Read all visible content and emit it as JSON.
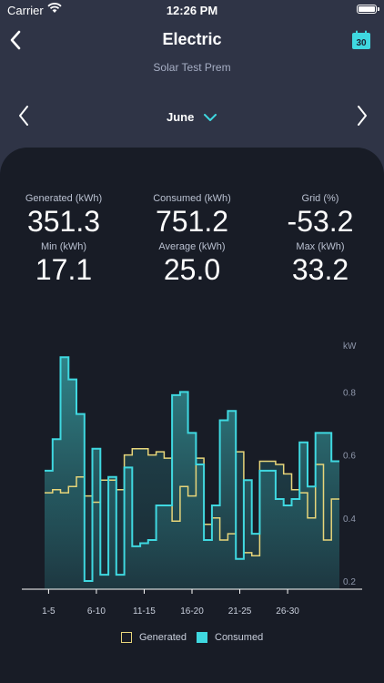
{
  "status": {
    "carrier": "Carrier",
    "time": "12:26 PM"
  },
  "header": {
    "title": "Electric",
    "subtitle": "Solar Test Prem",
    "calendar_day": "30"
  },
  "month": {
    "label": "June"
  },
  "stats": {
    "generated": {
      "label": "Generated (kWh)",
      "value": "351.3"
    },
    "consumed": {
      "label": "Consumed (kWh)",
      "value": "751.2"
    },
    "grid": {
      "label": "Grid (%)",
      "value": "-53.2"
    },
    "min": {
      "label": "Min (kWh)",
      "value": "17.1"
    },
    "average": {
      "label": "Average (kWh)",
      "value": "25.0"
    },
    "max": {
      "label": "Max (kWh)",
      "value": "33.2"
    }
  },
  "colors": {
    "generated": "#e7d57a",
    "consumed": "#3fd8e0",
    "panel": "#181c26",
    "background": "#2f3446"
  },
  "legend": {
    "generated": "Generated",
    "consumed": "Consumed"
  },
  "chart_data": {
    "type": "line",
    "step": true,
    "ylabel": "kW",
    "ylim": [
      0.2,
      0.9
    ],
    "yticks": [
      "0.2",
      "0.4",
      "0.6",
      "0.8"
    ],
    "xticks": [
      "1-5",
      "6-10",
      "11-15",
      "16-20",
      "21-25",
      "26-30"
    ],
    "series": [
      {
        "name": "Generated",
        "values": [
          0.48,
          0.49,
          0.48,
          0.5,
          0.53,
          0.47,
          0.45,
          0.52,
          0.52,
          0.49,
          0.6,
          0.62,
          0.62,
          0.6,
          0.61,
          0.59,
          0.39,
          0.5,
          0.47,
          0.59,
          0.38,
          0.4,
          0.33,
          0.35,
          0.61,
          0.29,
          0.28,
          0.58,
          0.58,
          0.57,
          0.54,
          0.49,
          0.48,
          0.4,
          0.57,
          0.33,
          0.46
        ]
      },
      {
        "name": "Consumed",
        "values": [
          0.55,
          0.65,
          0.91,
          0.84,
          0.73,
          0.2,
          0.62,
          0.22,
          0.53,
          0.22,
          0.56,
          0.31,
          0.32,
          0.33,
          0.44,
          0.44,
          0.79,
          0.8,
          0.67,
          0.57,
          0.33,
          0.44,
          0.71,
          0.74,
          0.27,
          0.52,
          0.35,
          0.55,
          0.55,
          0.46,
          0.44,
          0.46,
          0.64,
          0.5,
          0.67,
          0.67,
          0.58
        ]
      }
    ]
  }
}
